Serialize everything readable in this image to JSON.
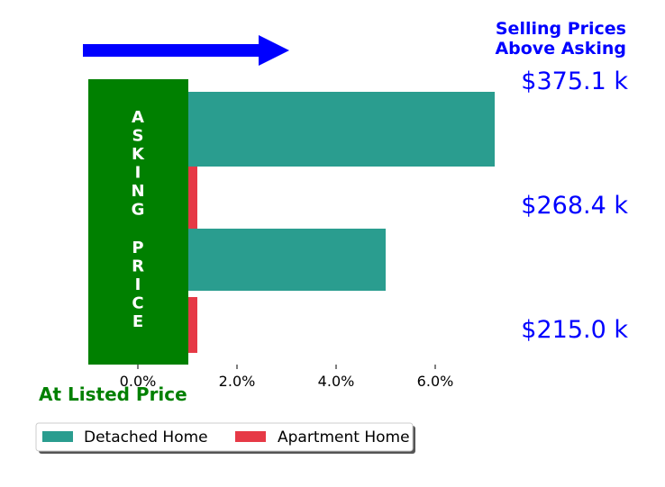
{
  "header": {
    "line1": "Selling Prices",
    "line2": "Above Asking"
  },
  "asking_box": {
    "text": "ASKING PRICE",
    "color": "#008000"
  },
  "at_listed": "At Listed Price",
  "arrow_color": "#0000ff",
  "price_labels": [
    "$375.1 k",
    "$268.4 k",
    "$215.0 k"
  ],
  "chart_data": {
    "type": "bar",
    "orientation": "horizontal",
    "xlim": [
      -1.0,
      9.0
    ],
    "x_ticks": [
      {
        "value": 0,
        "label": "0.0%"
      },
      {
        "value": 2,
        "label": "2.0%"
      },
      {
        "value": 4,
        "label": "4.0%"
      },
      {
        "value": 6,
        "label": "6.0%"
      }
    ],
    "series": [
      {
        "name": "Detached Home",
        "color": "#2a9d8f"
      },
      {
        "name": "Apartment Home",
        "color": "#e63946"
      }
    ],
    "bars": [
      {
        "series": "Detached Home",
        "value": 7.2,
        "band": 1
      },
      {
        "series": "Apartment Home",
        "value": 1.2,
        "band": 1
      },
      {
        "series": "Detached Home",
        "value": 5.0,
        "band": 2
      },
      {
        "series": "Apartment Home",
        "value": 1.2,
        "band": 2
      }
    ],
    "legend": {
      "placement": "bottom-left",
      "entries": [
        "Detached Home",
        "Apartment Home"
      ]
    }
  }
}
